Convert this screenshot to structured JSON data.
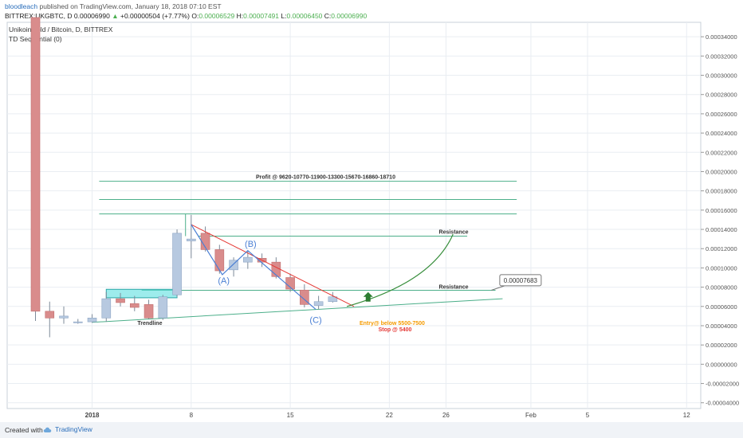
{
  "header": {
    "author": "bloodleach",
    "published_text": " published on TradingView.com, January 18, 2018 07:10 EST",
    "symbol_line": "BITTREX:UKGBTC, D  0.00006990",
    "change": "+0.00000504 (+7.77%)",
    "o_label": "O:",
    "o_value": "0.00006529",
    "h_label": "H:",
    "h_value": "0.00007491",
    "l_label": "L:",
    "l_value": "0.00006450",
    "c_label": "C:",
    "c_value": "0.00006990"
  },
  "legend": {
    "pair": "UnikoinGold / Bitcoin, D, BITTREX",
    "indicator": "TD Sequential (0)"
  },
  "footer": {
    "created_with": "Created with",
    "brand": "TradingView"
  },
  "colors": {
    "up": "#b7c9e0",
    "down": "#d98c8c",
    "grid": "#e9edf2",
    "resistance": "#4caf8a",
    "trend_red": "#e53935",
    "curve": "#388e3c",
    "zone": "#5ce0e0",
    "label_blue": "#4a7fd4",
    "entry": "#f59b00",
    "stop": "#e53935"
  },
  "chart_data": {
    "type": "candlestick",
    "y_axis_ticks": [
      "0.00034000",
      "0.00032000",
      "0.00030000",
      "0.00028000",
      "0.00026000",
      "0.00024000",
      "0.00022000",
      "0.00020000",
      "0.00018000",
      "0.00016000",
      "0.00014000",
      "0.00012000",
      "0.00010000",
      "0.00008000",
      "0.00006000",
      "0.00004000",
      "0.00002000",
      "0.00000000",
      "-0.00002000",
      "-0.00004000"
    ],
    "ylim": [
      -4.6e-05,
      0.000355
    ],
    "x_tick_labels": [
      "2018",
      "8",
      "15",
      "22",
      "26",
      "Feb",
      "5",
      "12"
    ],
    "x_tick_days": [
      1,
      8,
      15,
      22,
      26,
      32,
      36,
      43
    ],
    "xlim": [
      -5,
      44
    ],
    "candles": [
      {
        "d": -3,
        "o": 0.00036,
        "h": 0.00036,
        "l": 4.5e-05,
        "c": 5.5e-05
      },
      {
        "d": -2,
        "o": 5.5e-05,
        "h": 6.5e-05,
        "l": 2.8e-05,
        "c": 4.8e-05
      },
      {
        "d": -1,
        "o": 4.8e-05,
        "h": 6e-05,
        "l": 4.2e-05,
        "c": 5e-05
      },
      {
        "d": 0,
        "o": 4.3e-05,
        "h": 4.7e-05,
        "l": 4.2e-05,
        "c": 4.4e-05
      },
      {
        "d": 1,
        "o": 4.4e-05,
        "h": 5.2e-05,
        "l": 4.3e-05,
        "c": 4.8e-05
      },
      {
        "d": 2,
        "o": 4.8e-05,
        "h": 7.5e-05,
        "l": 4.4e-05,
        "c": 6.8e-05
      },
      {
        "d": 3,
        "o": 6.8e-05,
        "h": 7.4e-05,
        "l": 6e-05,
        "c": 6.4e-05
      },
      {
        "d": 4,
        "o": 6.3e-05,
        "h": 7.1e-05,
        "l": 5.5e-05,
        "c": 5.9e-05
      },
      {
        "d": 5,
        "o": 6.2e-05,
        "h": 6.7e-05,
        "l": 4.7e-05,
        "c": 4.8e-05
      },
      {
        "d": 6,
        "o": 4.8e-05,
        "h": 7.2e-05,
        "l": 4.6e-05,
        "c": 7e-05
      },
      {
        "d": 7,
        "o": 7.2e-05,
        "h": 0.00014,
        "l": 7e-05,
        "c": 0.000136
      },
      {
        "d": 8,
        "o": 0.000128,
        "h": 0.000155,
        "l": 0.00011,
        "c": 0.00013
      },
      {
        "d": 9,
        "o": 0.000136,
        "h": 0.000143,
        "l": 0.000117,
        "c": 0.000119
      },
      {
        "d": 10,
        "o": 0.000119,
        "h": 0.000124,
        "l": 9.4e-05,
        "c": 9.7e-05
      },
      {
        "d": 11,
        "o": 9.8e-05,
        "h": 0.000111,
        "l": 9.1e-05,
        "c": 0.000108
      },
      {
        "d": 12,
        "o": 0.000106,
        "h": 0.000118,
        "l": 9.9e-05,
        "c": 0.000111
      },
      {
        "d": 13,
        "o": 0.00011,
        "h": 0.000115,
        "l": 0.000101,
        "c": 0.000106
      },
      {
        "d": 14,
        "o": 0.000106,
        "h": 0.000111,
        "l": 8.9e-05,
        "c": 9.1e-05
      },
      {
        "d": 15,
        "o": 9e-05,
        "h": 9.4e-05,
        "l": 7.5e-05,
        "c": 7.8e-05
      },
      {
        "d": 16,
        "o": 7.7e-05,
        "h": 8.3e-05,
        "l": 5.9e-05,
        "c": 6.2e-05
      },
      {
        "d": 17,
        "o": 6.1e-05,
        "h": 7.1e-05,
        "l": 5.7e-05,
        "c": 6.5e-05
      },
      {
        "d": 18,
        "o": 6.5e-05,
        "h": 7.5e-05,
        "l": 6.4e-05,
        "c": 7e-05
      }
    ],
    "annotations": {
      "profit_text": "Profit @ 9620-10770-11900-13300-15670-16860-18710",
      "resistance_upper": "Resistance",
      "resistance_lower": "Resistance",
      "price_callout": "0.00007683",
      "trendline": "Trendline",
      "wave_a": "(A)",
      "wave_b": "(B)",
      "wave_c": "(C)",
      "entry": "Entry@ below 5500-7500",
      "stop": "Stop @ 5400"
    }
  }
}
